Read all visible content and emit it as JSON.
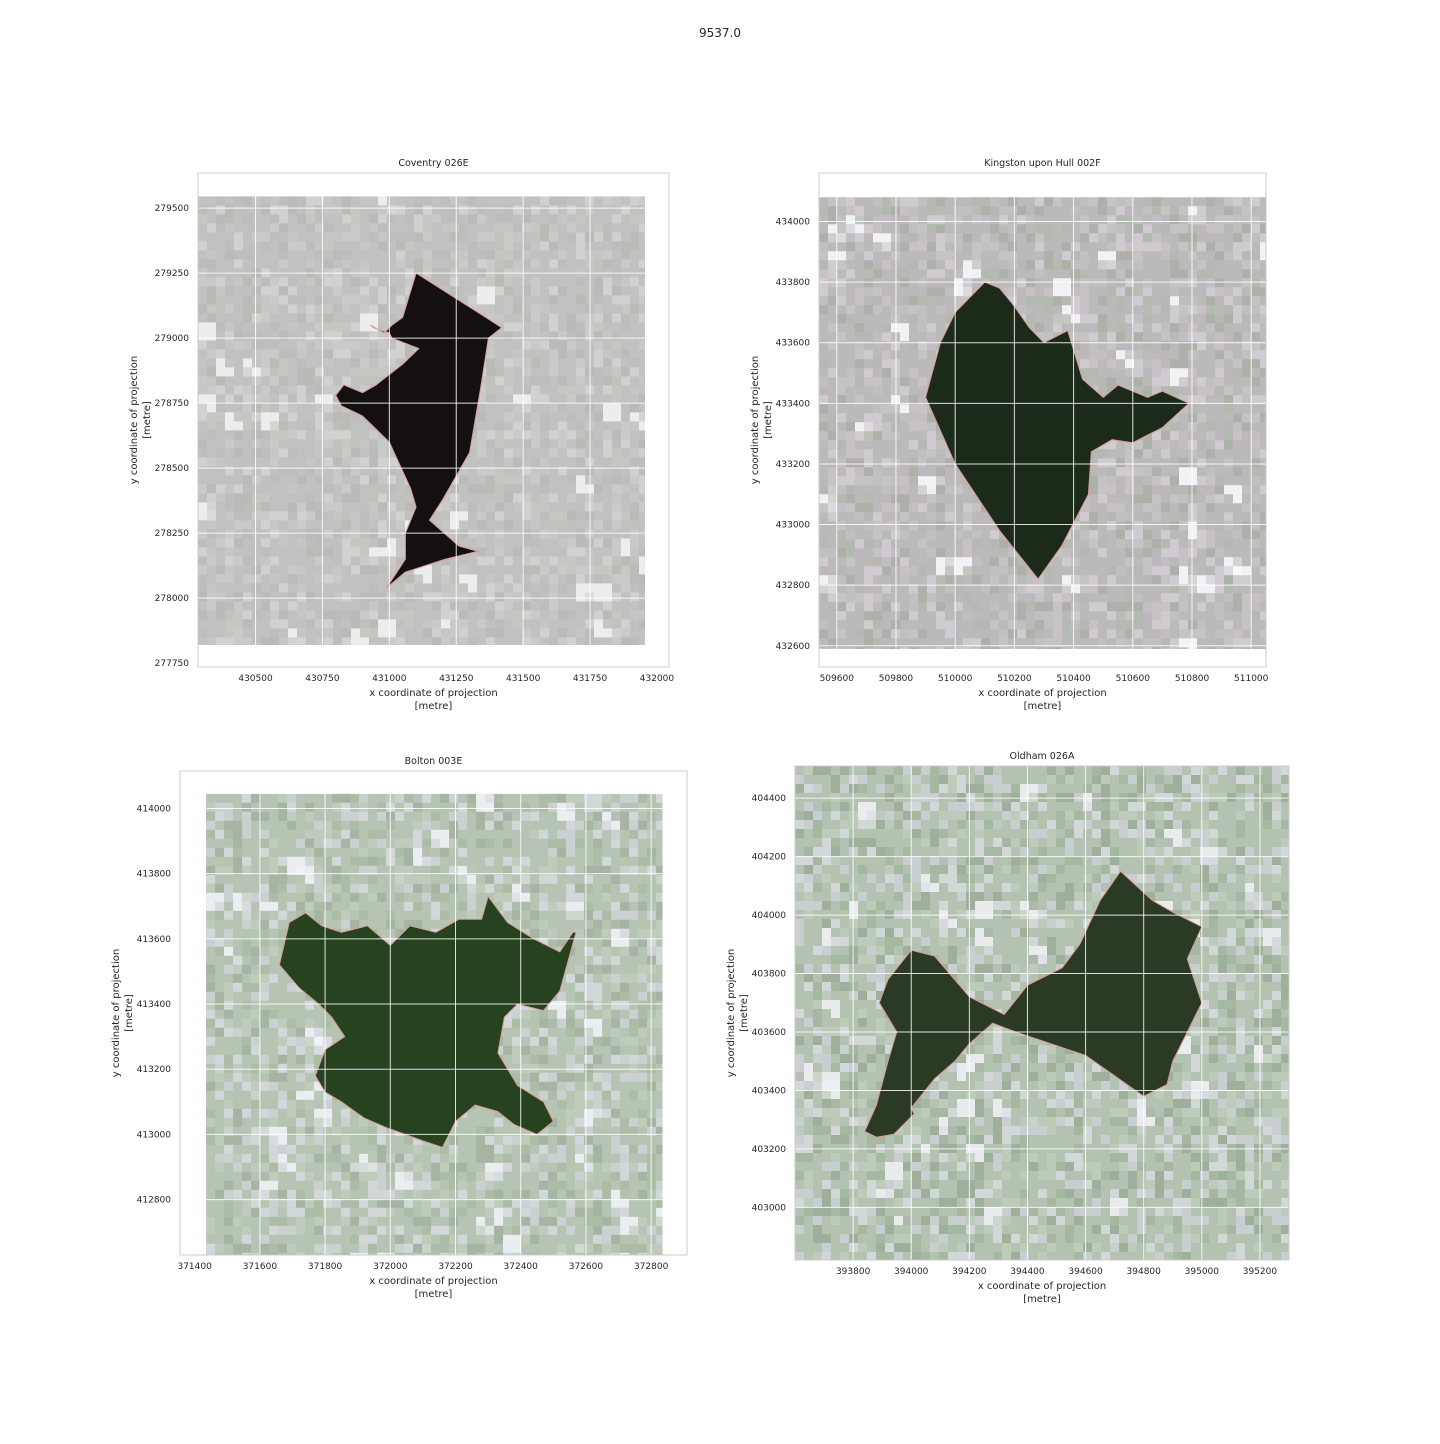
{
  "figure": {
    "suptitle": "9537.0"
  },
  "colors": {
    "background": "#ffffff",
    "grid": "#ffffff",
    "axes_edge": "#cccccc",
    "boundary": "#d99a9a"
  },
  "chart_data": [
    {
      "type": "map",
      "title": "Coventry 026E",
      "xlabel": "x coordinate of projection\n[metre]",
      "ylabel": "y coordinate of projection\n[metre]",
      "xlim": [
        430285,
        432045
      ],
      "ylim": [
        277735,
        279635
      ],
      "xticks": [
        430500,
        430750,
        431000,
        431250,
        431500,
        431750,
        432000
      ],
      "yticks": [
        277750,
        278000,
        278250,
        278500,
        278750,
        279000,
        279250,
        279500
      ],
      "image_extent": [
        430285,
        431955,
        277820,
        279545
      ],
      "basemap": "grey",
      "polygon": [
        [
          431100,
          279250
        ],
        [
          431360,
          279080
        ],
        [
          431420,
          279040
        ],
        [
          431370,
          279000
        ],
        [
          431340,
          278800
        ],
        [
          431300,
          278560
        ],
        [
          431200,
          278380
        ],
        [
          431150,
          278300
        ],
        [
          431260,
          278200
        ],
        [
          431330,
          278180
        ],
        [
          431210,
          278150
        ],
        [
          431060,
          278100
        ],
        [
          430990,
          278040
        ],
        [
          431060,
          278150
        ],
        [
          431060,
          278250
        ],
        [
          431100,
          278350
        ],
        [
          431080,
          278420
        ],
        [
          431000,
          278600
        ],
        [
          430900,
          278700
        ],
        [
          430820,
          278740
        ],
        [
          430800,
          278780
        ],
        [
          430830,
          278820
        ],
        [
          430900,
          278790
        ],
        [
          430950,
          278820
        ],
        [
          431050,
          278900
        ],
        [
          431110,
          278960
        ],
        [
          431010,
          279000
        ],
        [
          431000,
          279020
        ],
        [
          430940,
          279040
        ],
        [
          430930,
          279050
        ],
        [
          430980,
          279020
        ],
        [
          431010,
          279050
        ],
        [
          431050,
          279080
        ],
        [
          431100,
          279250
        ]
      ]
    },
    {
      "type": "map",
      "title": "Kingston upon Hull 002F",
      "xlabel": "x coordinate of projection\n[metre]",
      "ylabel": "y coordinate of projection\n[metre]",
      "xlim": [
        509540,
        511050
      ],
      "ylim": [
        432530,
        434160
      ],
      "xticks": [
        509600,
        509800,
        510000,
        510200,
        510400,
        510600,
        510800,
        511000
      ],
      "yticks": [
        432600,
        432800,
        433000,
        433200,
        433400,
        433600,
        433800,
        434000
      ],
      "image_extent": [
        509540,
        511050,
        432590,
        434080
      ],
      "basemap": "urban",
      "polygon": [
        [
          510100,
          433800
        ],
        [
          510150,
          433780
        ],
        [
          510200,
          433720
        ],
        [
          510250,
          433650
        ],
        [
          510300,
          433600
        ],
        [
          510380,
          433640
        ],
        [
          510430,
          433480
        ],
        [
          510500,
          433420
        ],
        [
          510550,
          433460
        ],
        [
          510650,
          433420
        ],
        [
          510700,
          433440
        ],
        [
          510790,
          433400
        ],
        [
          510700,
          433320
        ],
        [
          510600,
          433270
        ],
        [
          510530,
          433280
        ],
        [
          510460,
          433240
        ],
        [
          510450,
          433100
        ],
        [
          510360,
          432930
        ],
        [
          510280,
          432820
        ],
        [
          510150,
          432980
        ],
        [
          510000,
          433200
        ],
        [
          509900,
          433420
        ],
        [
          509950,
          433600
        ],
        [
          510000,
          433700
        ],
        [
          510100,
          433800
        ]
      ]
    },
    {
      "type": "map",
      "title": "Bolton 003E",
      "xlabel": "x coordinate of projection\n[metre]",
      "ylabel": "y coordinate of projection\n[metre]",
      "xlim": [
        371355,
        372910
      ],
      "ylim": [
        412630,
        414115
      ],
      "xticks": [
        371400,
        371600,
        371800,
        372000,
        372200,
        372400,
        372600,
        372800
      ],
      "yticks": [
        412800,
        413000,
        413200,
        413400,
        413600,
        413800,
        414000
      ],
      "image_extent": [
        371435,
        372835,
        412630,
        414045
      ],
      "basemap": "green",
      "polygon": [
        [
          371690,
          413650
        ],
        [
          371740,
          413680
        ],
        [
          371790,
          413640
        ],
        [
          371850,
          413620
        ],
        [
          371930,
          413640
        ],
        [
          372000,
          413580
        ],
        [
          372060,
          413640
        ],
        [
          372140,
          413620
        ],
        [
          372210,
          413660
        ],
        [
          372280,
          413660
        ],
        [
          372300,
          413730
        ],
        [
          372360,
          413650
        ],
        [
          372440,
          413600
        ],
        [
          372520,
          413560
        ],
        [
          372560,
          413620
        ],
        [
          372570,
          413620
        ],
        [
          372520,
          413440
        ],
        [
          372470,
          413380
        ],
        [
          372390,
          413400
        ],
        [
          372350,
          413360
        ],
        [
          372330,
          413250
        ],
        [
          372390,
          413150
        ],
        [
          372470,
          413100
        ],
        [
          372500,
          413040
        ],
        [
          372450,
          413000
        ],
        [
          372380,
          413030
        ],
        [
          372330,
          413070
        ],
        [
          372260,
          413090
        ],
        [
          372200,
          413040
        ],
        [
          372160,
          412960
        ],
        [
          372100,
          412980
        ],
        [
          371990,
          413020
        ],
        [
          371920,
          413050
        ],
        [
          371850,
          413100
        ],
        [
          371800,
          413130
        ],
        [
          371770,
          413180
        ],
        [
          371800,
          413260
        ],
        [
          371860,
          413300
        ],
        [
          371820,
          413360
        ],
        [
          371780,
          413400
        ],
        [
          371720,
          413450
        ],
        [
          371660,
          413520
        ],
        [
          371690,
          413650
        ]
      ]
    },
    {
      "type": "map",
      "title": "Oldham 026A",
      "xlabel": "x coordinate of projection\n[metre]",
      "ylabel": "y coordinate of projection\n[metre]",
      "xlim": [
        393600,
        395300
      ],
      "ylim": [
        402820,
        404510
      ],
      "xticks": [
        393800,
        394000,
        394200,
        394400,
        394600,
        394800,
        395000,
        395200
      ],
      "yticks": [
        403000,
        403200,
        403400,
        403600,
        403800,
        404000,
        404200,
        404400
      ],
      "image_extent": [
        393600,
        395300,
        402820,
        404510
      ],
      "basemap": "mixed",
      "polygon": [
        [
          394000,
          403880
        ],
        [
          394080,
          403860
        ],
        [
          394200,
          403720
        ],
        [
          394320,
          403660
        ],
        [
          394400,
          403760
        ],
        [
          394520,
          403820
        ],
        [
          394580,
          403900
        ],
        [
          394650,
          404050
        ],
        [
          394720,
          404150
        ],
        [
          394830,
          404050
        ],
        [
          394900,
          404010
        ],
        [
          395000,
          403960
        ],
        [
          394950,
          403850
        ],
        [
          395000,
          403700
        ],
        [
          394900,
          403500
        ],
        [
          394880,
          403420
        ],
        [
          394800,
          403380
        ],
        [
          394700,
          403450
        ],
        [
          394600,
          403520
        ],
        [
          394480,
          403560
        ],
        [
          394360,
          403600
        ],
        [
          394280,
          403630
        ],
        [
          394200,
          403560
        ],
        [
          394150,
          403500
        ],
        [
          394080,
          403440
        ],
        [
          394000,
          403340
        ],
        [
          394010,
          403320
        ],
        [
          394000,
          403310
        ],
        [
          393940,
          403250
        ],
        [
          393880,
          403240
        ],
        [
          393840,
          403260
        ],
        [
          393880,
          403350
        ],
        [
          393920,
          403500
        ],
        [
          393950,
          403600
        ],
        [
          393890,
          403700
        ],
        [
          393920,
          403780
        ],
        [
          394000,
          403880
        ]
      ]
    }
  ]
}
